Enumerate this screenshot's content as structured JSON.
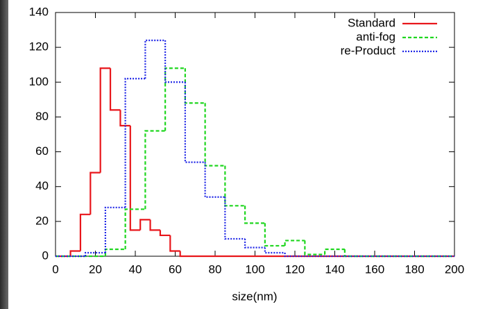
{
  "chart_data": {
    "type": "histogram",
    "xlabel": "size(nm)",
    "xlim": [
      0,
      200
    ],
    "ylim": [
      0,
      140
    ],
    "xticks": [
      0,
      20,
      40,
      60,
      80,
      100,
      120,
      140,
      160,
      180,
      200
    ],
    "yticks": [
      0,
      20,
      40,
      60,
      80,
      100,
      120,
      140
    ],
    "legend": "upper right",
    "series": [
      {
        "name": "Standard",
        "color": "#e8161b",
        "dash": "solid",
        "bins": [
          0,
          7.5,
          12.5,
          17.5,
          22.5,
          27.5,
          32.5,
          37.5,
          42.5,
          47.5,
          52.5,
          57.5,
          62.5,
          200
        ],
        "values": [
          0,
          3,
          24,
          48,
          108,
          84,
          75,
          15,
          21,
          15,
          12,
          3,
          0
        ]
      },
      {
        "name": "anti-fog",
        "color": "#1fd61f",
        "dash": "dashed",
        "bins": [
          0,
          25,
          35,
          45,
          55,
          65,
          75,
          85,
          95,
          105,
          115,
          125,
          135,
          145,
          200
        ],
        "values": [
          0,
          4,
          27,
          72,
          108,
          88,
          52,
          29,
          19,
          6,
          9,
          1,
          4,
          0
        ]
      },
      {
        "name": "re-Product",
        "color": "#1d24e6",
        "dash": "dotted",
        "bins": [
          0,
          15,
          25,
          35,
          45,
          55,
          65,
          75,
          85,
          95,
          105,
          115,
          200
        ],
        "values": [
          0,
          2,
          28,
          102,
          124,
          100,
          54,
          34,
          10,
          5,
          2,
          0
        ]
      }
    ]
  }
}
